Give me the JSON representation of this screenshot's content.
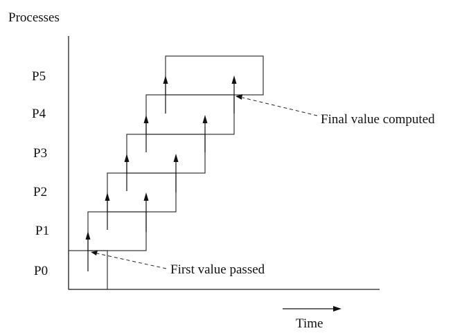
{
  "y_axis_label": "Processes",
  "x_axis_label": "Time",
  "processes": [
    "P0",
    "P1",
    "P2",
    "P3",
    "P4",
    "P5"
  ],
  "annotations": {
    "first": "First value passed",
    "final": "Final value computed"
  }
}
